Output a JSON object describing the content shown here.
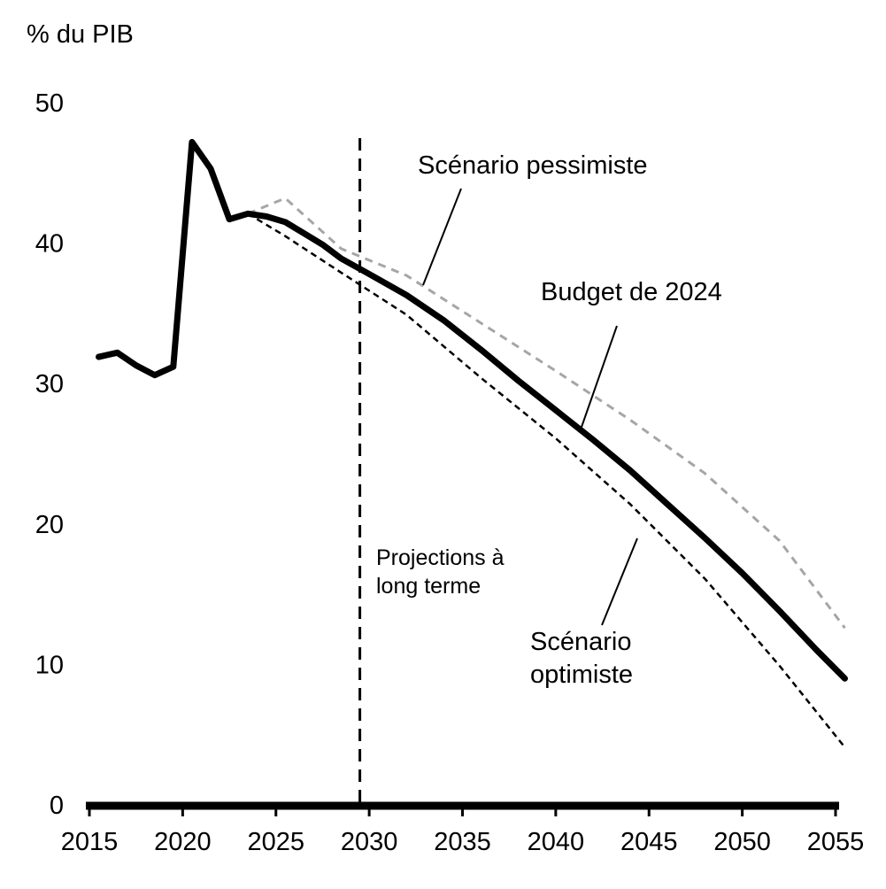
{
  "chart_data": {
    "type": "line",
    "title": "",
    "xlabel": "",
    "ylabel": "% du PIB",
    "xlim": [
      2015,
      2055
    ],
    "ylim": [
      0,
      50
    ],
    "x_ticks": [
      2015,
      2020,
      2025,
      2030,
      2035,
      2040,
      2045,
      2050,
      2055
    ],
    "y_ticks": [
      0,
      10,
      20,
      30,
      40,
      50
    ],
    "grid": false,
    "legend": "none",
    "projection_start": 2029.5,
    "series": [
      {
        "name": "Budget de 2024",
        "color": "#000000",
        "style": "solid-thick",
        "x": [
          2015.5,
          2016.5,
          2017.5,
          2018.5,
          2019.5,
          2020.5,
          2021.5,
          2022.5,
          2023.5,
          2024.5,
          2025.5,
          2026.5,
          2027.5,
          2028.5,
          2030,
          2032,
          2034,
          2036,
          2038,
          2040,
          2042,
          2044,
          2046,
          2048,
          2050,
          2052,
          2054,
          2055.5
        ],
        "values": [
          31.9,
          32.2,
          31.3,
          30.6,
          31.2,
          47.2,
          45.3,
          41.7,
          42.1,
          41.9,
          41.5,
          40.7,
          39.9,
          38.9,
          37.8,
          36.3,
          34.5,
          32.4,
          30.2,
          28.1,
          26.0,
          23.8,
          21.4,
          19.0,
          16.5,
          13.8,
          11.0,
          9.0
        ]
      },
      {
        "name": "Scénario pessimiste",
        "color": "#a6a6a6",
        "style": "dashed",
        "x": [
          2023.5,
          2025.5,
          2028.5,
          2032,
          2036,
          2040,
          2044,
          2048,
          2052,
          2055.5
        ],
        "values": [
          42.1,
          43.2,
          39.6,
          37.7,
          34.3,
          30.9,
          27.4,
          23.6,
          18.8,
          12.6
        ]
      },
      {
        "name": "Scénario optimiste",
        "color": "#000000",
        "style": "dashed-fine",
        "x": [
          2023.5,
          2025.5,
          2028.5,
          2032,
          2036,
          2040,
          2044,
          2048,
          2052,
          2055.5
        ],
        "values": [
          42.1,
          40.5,
          37.9,
          34.9,
          30.4,
          26.1,
          21.4,
          16.1,
          9.9,
          4.1
        ]
      }
    ],
    "annotations": [
      {
        "id": "pessimiste",
        "lines": [
          "Scénario pessimiste"
        ]
      },
      {
        "id": "budget",
        "lines": [
          "Budget de 2024"
        ]
      },
      {
        "id": "optimiste",
        "lines": [
          "Scénario",
          "optimiste"
        ]
      },
      {
        "id": "projections",
        "lines": [
          "Projections à",
          "long terme"
        ]
      }
    ]
  }
}
